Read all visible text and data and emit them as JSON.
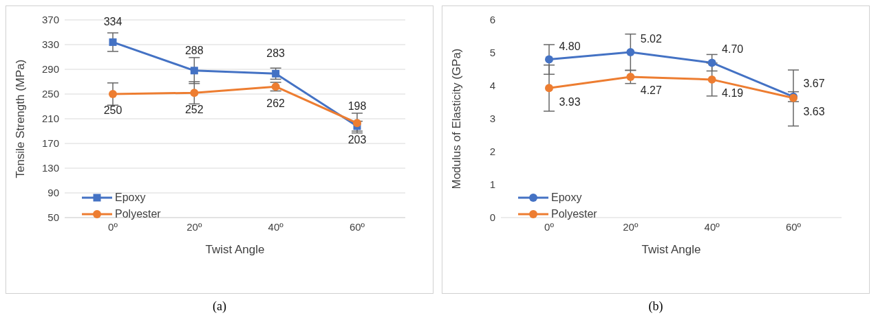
{
  "chart_data": [
    {
      "type": "line",
      "xlabel": "Twist Angle",
      "ylabel": "Tensile Strength (MPa)",
      "categories": [
        "0º",
        "20º",
        "40º",
        "60º"
      ],
      "ylim": [
        50,
        370
      ],
      "yticks": [
        50,
        90,
        130,
        170,
        210,
        250,
        290,
        330,
        370
      ],
      "grid": "y",
      "legend": "bottom left",
      "data_labels": true,
      "annotations": [
        "(a)"
      ],
      "series": [
        {
          "name": "Epoxy",
          "color": "#4472c4",
          "marker": "square",
          "values": [
            334,
            288,
            283,
            198
          ],
          "errors": [
            15,
            21,
            9,
            8
          ]
        },
        {
          "name": "Polyester",
          "color": "#ed7d31",
          "marker": "circle",
          "values": [
            250,
            252,
            262,
            203
          ],
          "errors": [
            18,
            18,
            7,
            16
          ]
        }
      ]
    },
    {
      "type": "line",
      "xlabel": "Twist Angle",
      "ylabel": "Modulus of Elasticity (GPa)",
      "categories": [
        "0º",
        "20º",
        "40º",
        "60º"
      ],
      "ylim": [
        0,
        6
      ],
      "yticks": [
        0,
        1,
        2,
        3,
        4,
        5,
        6
      ],
      "grid": false,
      "legend": "bottom left",
      "annotations": [
        "(b)"
      ],
      "series": [
        {
          "name": "Epoxy",
          "color": "#4472c4",
          "marker": "circle",
          "values": [
            4.8,
            5.02,
            4.7,
            3.67
          ],
          "value_labels": [
            "4.80",
            "5.02",
            "4.70",
            "3.67"
          ],
          "errors": [
            0.45,
            0.55,
            0.25,
            0.15
          ]
        },
        {
          "name": "Polyester",
          "color": "#ed7d31",
          "marker": "circle",
          "values": [
            3.93,
            4.27,
            4.19,
            3.63
          ],
          "value_labels": [
            "3.93",
            "4.27",
            "4.19",
            "3.63"
          ],
          "errors": [
            0.7,
            0.2,
            0.5,
            0.85
          ]
        }
      ]
    }
  ]
}
